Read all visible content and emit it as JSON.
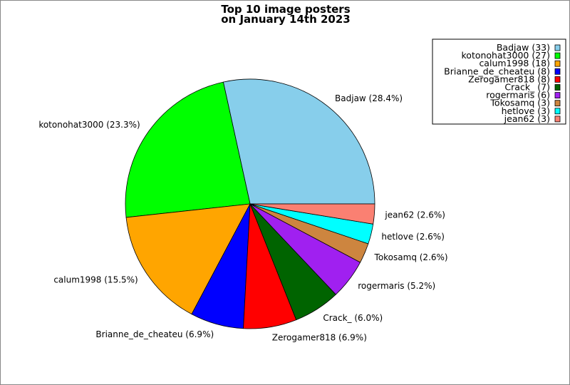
{
  "chart_data": {
    "type": "pie",
    "title_lines": [
      "Top 10 image posters",
      "on January 14th 2023"
    ],
    "start_angle_deg": 0,
    "direction": "counterclockwise",
    "legend_placement": "top-right",
    "slices": [
      {
        "name": "Badjaw",
        "value": 33,
        "percent_label": "Badjaw (28.4%)",
        "legend_label": "Badjaw (33)",
        "color": "#87ceeb"
      },
      {
        "name": "kotonohat3000",
        "value": 27,
        "percent_label": "kotonohat3000 (23.3%)",
        "legend_label": "kotonohat3000 (27)",
        "color": "#00ff00"
      },
      {
        "name": "calum1998",
        "value": 18,
        "percent_label": "calum1998 (15.5%)",
        "legend_label": "calum1998 (18)",
        "color": "#ffa500"
      },
      {
        "name": "Brianne_de_cheateu",
        "value": 8,
        "percent_label": "Brianne_de_cheateu (6.9%)",
        "legend_label": "Brianne_de_cheateu (8)",
        "color": "#0000ff"
      },
      {
        "name": "Zerogamer818",
        "value": 8,
        "percent_label": "Zerogamer818 (6.9%)",
        "legend_label": "Zerogamer818 (8)",
        "color": "#ff0000"
      },
      {
        "name": "Crack_",
        "value": 7,
        "percent_label": "Crack_ (6.0%)",
        "legend_label": "Crack_ (7)",
        "color": "#006400"
      },
      {
        "name": "rogermaris",
        "value": 6,
        "percent_label": "rogermaris (5.2%)",
        "legend_label": "rogermaris (6)",
        "color": "#a020f0"
      },
      {
        "name": "Tokosamq",
        "value": 3,
        "percent_label": "Tokosamq (2.6%)",
        "legend_label": "Tokosamq (3)",
        "color": "#cd853f"
      },
      {
        "name": "hetlove",
        "value": 3,
        "percent_label": "hetlove (2.6%)",
        "legend_label": "hetlove (3)",
        "color": "#00ffff"
      },
      {
        "name": "jean62",
        "value": 3,
        "percent_label": "jean62 (2.6%)",
        "legend_label": "jean62 (3)",
        "color": "#fa8072"
      }
    ]
  }
}
